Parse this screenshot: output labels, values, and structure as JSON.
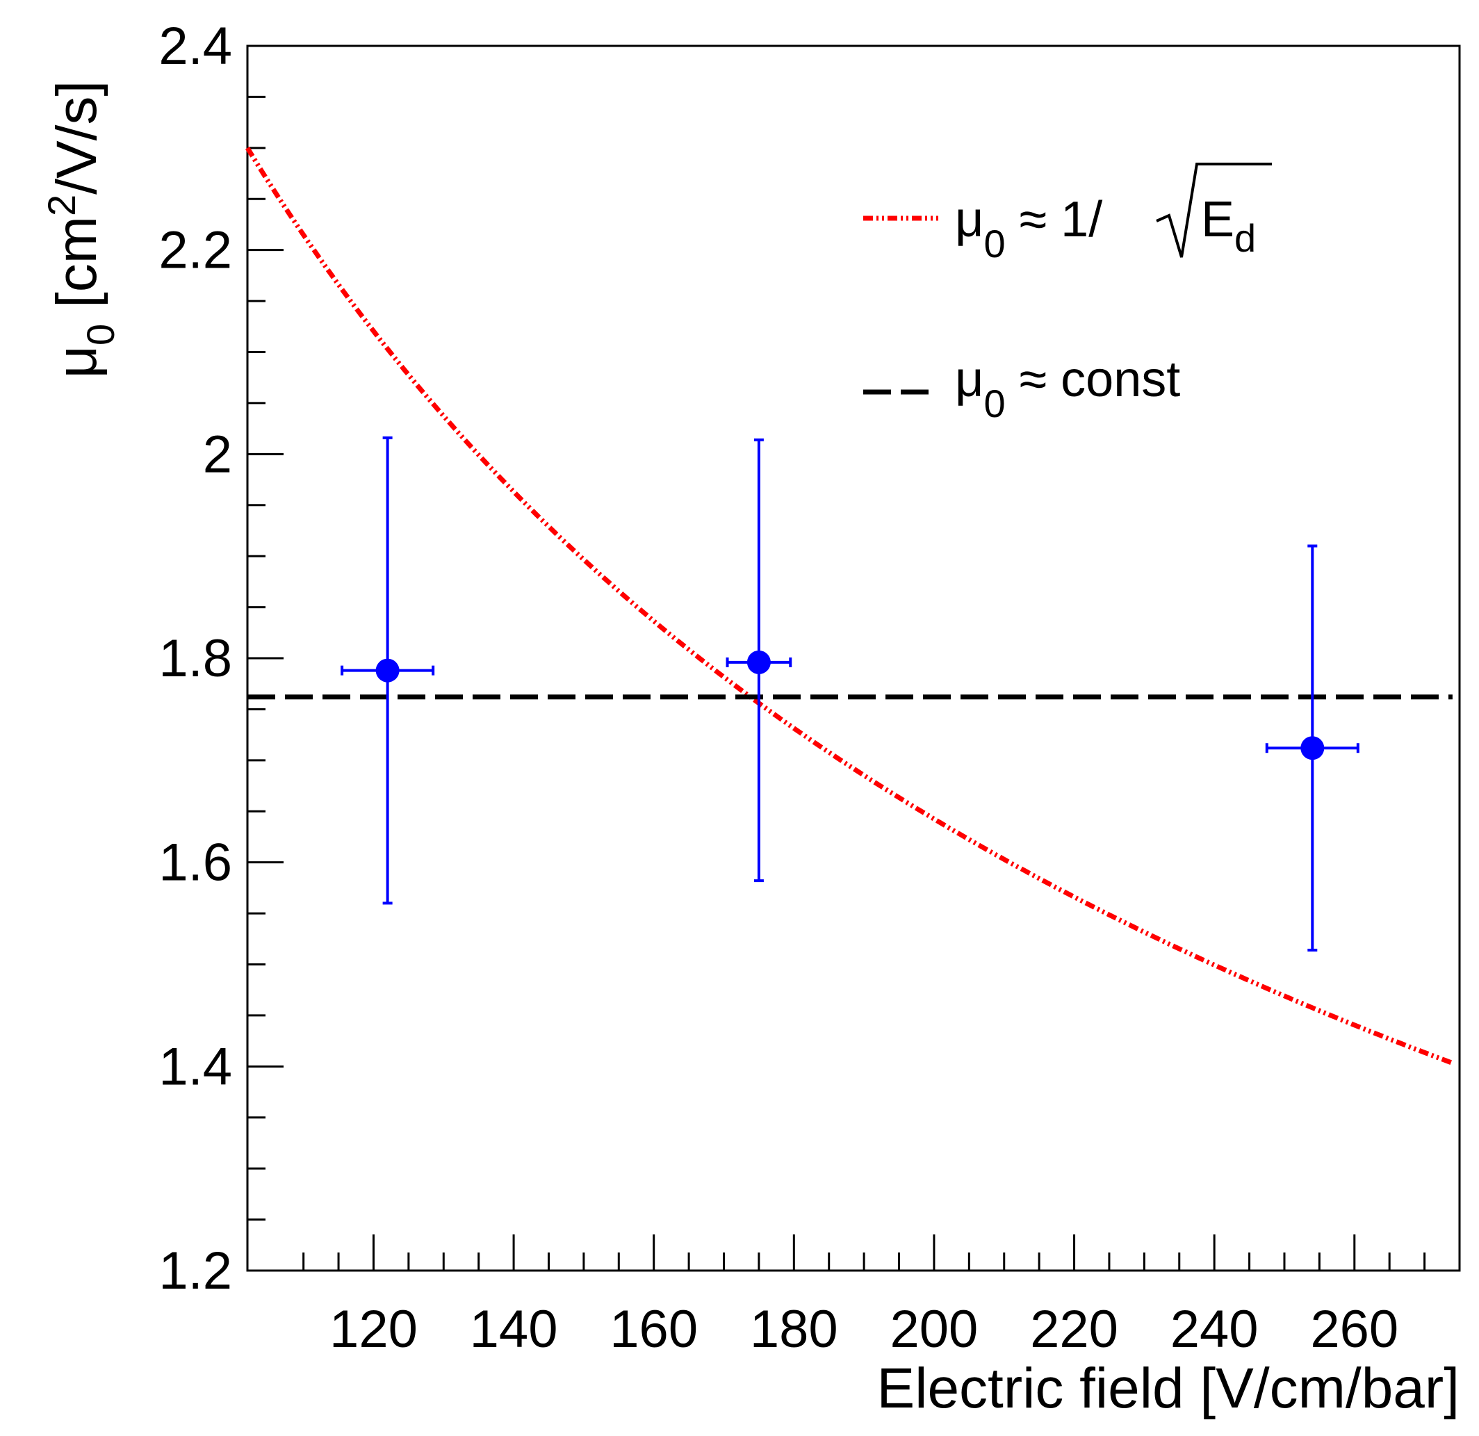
{
  "chart_data": {
    "type": "scatter",
    "xlabel": "Electric field [V/cm/bar]",
    "ylabel": {
      "mu": "μ",
      "sub": "0",
      "unit_open": " [cm",
      "unit_sup": "2",
      "unit_close": "/V/s]"
    },
    "xlim": [
      102,
      275
    ],
    "ylim": [
      1.2,
      2.4
    ],
    "xticks": [
      120,
      140,
      160,
      180,
      200,
      220,
      240,
      260
    ],
    "xtick_labels": [
      "120",
      "140",
      "160",
      "180",
      "200",
      "220",
      "240",
      "260"
    ],
    "yticks": [
      1.2,
      1.4,
      1.6,
      1.8,
      2.0,
      2.2,
      2.4
    ],
    "ytick_labels": [
      "1.2",
      "1.4",
      "1.6",
      "1.8",
      "2",
      "2.2",
      "2.4"
    ],
    "points": {
      "name": "data",
      "color": "#0000ff",
      "x": [
        122,
        175,
        254
      ],
      "y": [
        1.788,
        1.796,
        1.712
      ],
      "xerr": [
        6.5,
        4.5,
        6.5
      ],
      "yerr_low": [
        0.228,
        0.214,
        0.198
      ],
      "yerr_high": [
        0.228,
        0.218,
        0.198
      ]
    },
    "curves": [
      {
        "name": "inverse-sqrt-fit",
        "color": "#ff0000",
        "style": "dash-dot-dot",
        "formula": "2.30 * sqrt(102 / x)",
        "x_range": [
          102,
          274
        ]
      },
      {
        "name": "const-fit",
        "color": "#000000",
        "style": "dashed",
        "value": 1.762,
        "x_range": [
          102,
          274
        ]
      }
    ],
    "legend": {
      "position": "top-right",
      "entries": [
        {
          "mu": "μ",
          "sub": "0",
          "rel": " ≈ 1/",
          "root": "E",
          "root_sub": "d"
        },
        {
          "mu": "μ",
          "sub": "0",
          "rel": " ≈ const"
        }
      ]
    }
  }
}
